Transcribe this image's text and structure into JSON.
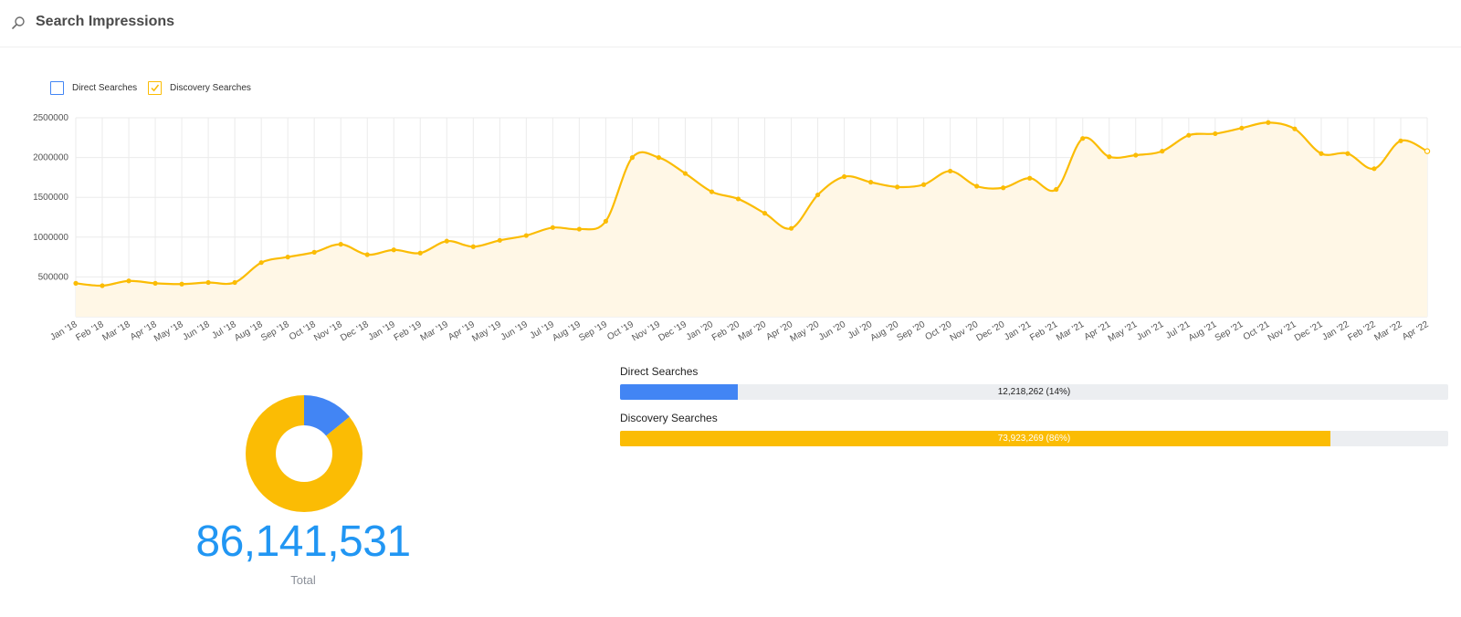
{
  "header": {
    "title": "Search Impressions",
    "icon": "search-icon"
  },
  "legend": [
    {
      "label": "Direct Searches",
      "checked": false,
      "color": "#4285f4"
    },
    {
      "label": "Discovery Searches",
      "checked": true,
      "color": "#fbbc04"
    }
  ],
  "chart_data": [
    {
      "type": "area",
      "title": "",
      "xlabel": "",
      "ylabel": "",
      "ylim": [
        0,
        2500000
      ],
      "yticks": [
        "500000",
        "1000000",
        "1500000",
        "2000000",
        "2500000"
      ],
      "grid": true,
      "legend_position": "top-left",
      "categories": [
        "Jan '18",
        "Feb '18",
        "Mar '18",
        "Apr '18",
        "May '18",
        "Jun '18",
        "Jul '18",
        "Aug '18",
        "Sep '18",
        "Oct '18",
        "Nov '18",
        "Dec '18",
        "Jan '19",
        "Feb '19",
        "Mar '19",
        "Apr '19",
        "May '19",
        "Jun '19",
        "Jul '19",
        "Aug '19",
        "Sep '19",
        "Oct '19",
        "Nov '19",
        "Dec '19",
        "Jan '20",
        "Feb '20",
        "Mar '20",
        "Apr '20",
        "May '20",
        "Jun '20",
        "Jul '20",
        "Aug '20",
        "Sep '20",
        "Oct '20",
        "Nov '20",
        "Dec '20",
        "Jan '21",
        "Feb '21",
        "Mar '21",
        "Apr '21",
        "May '21",
        "Jun '21",
        "Jul '21",
        "Aug '21",
        "Sep '21",
        "Oct '21",
        "Nov '21",
        "Dec '21",
        "Jan '22",
        "Feb '22",
        "Mar '22",
        "Apr '22"
      ],
      "series": [
        {
          "name": "Discovery Searches",
          "color": "#fbbc04",
          "values": [
            420000,
            390000,
            450000,
            420000,
            410000,
            430000,
            430000,
            680000,
            750000,
            810000,
            910000,
            780000,
            840000,
            800000,
            950000,
            880000,
            960000,
            1020000,
            1120000,
            1100000,
            1200000,
            2000000,
            2000000,
            1800000,
            1570000,
            1480000,
            1300000,
            1110000,
            1530000,
            1760000,
            1690000,
            1630000,
            1660000,
            1830000,
            1640000,
            1620000,
            1740000,
            1600000,
            2240000,
            2010000,
            2030000,
            2080000,
            2280000,
            2300000,
            2370000,
            2440000,
            2360000,
            2050000,
            2050000,
            1860000,
            2210000,
            2080000
          ]
        }
      ]
    },
    {
      "type": "pie",
      "title": "",
      "donut": true,
      "categories": [
        "Direct Searches",
        "Discovery Searches"
      ],
      "values": [
        12218262,
        73923269
      ],
      "colors": [
        "#4285f4",
        "#fbbc04"
      ]
    }
  ],
  "bars": {
    "direct": {
      "label": "Direct Searches",
      "value_text": "12,218,262 (14%)",
      "fraction": 0.1418,
      "color": "#4285f4"
    },
    "discovery": {
      "label": "Discovery Searches",
      "value_text": "73,923,269 (86%)",
      "fraction": 0.8582,
      "color": "#fbbc04"
    }
  },
  "total": {
    "value": "86,141,531",
    "label": "Total"
  }
}
